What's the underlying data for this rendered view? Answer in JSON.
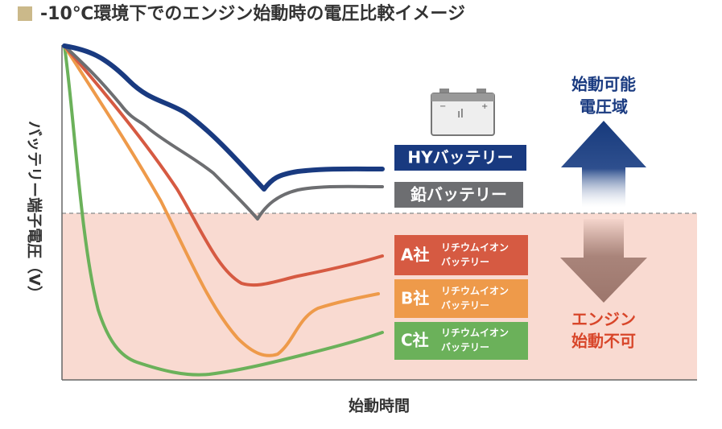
{
  "header": {
    "title": "-10℃環境下でのエンジン始動時の電圧比較イメージ"
  },
  "axes": {
    "y_label": "バッテリー端子電圧（V）",
    "x_label": "始動時間"
  },
  "series": [
    {
      "label": "HYバッテリー"
    },
    {
      "label": "鉛バッテリー"
    },
    {
      "label": "A社",
      "sublabel": [
        "リチウムイオン",
        "バッテリー"
      ]
    },
    {
      "label": "B社",
      "sublabel": [
        "リチウムイオン",
        "バッテリー"
      ]
    },
    {
      "label": "C社",
      "sublabel": [
        "リチウムイオン",
        "バッテリー"
      ]
    }
  ],
  "zones": {
    "ok": [
      "始動可能",
      "電圧域"
    ],
    "ng": [
      "エンジン",
      "始動不可"
    ]
  }
}
